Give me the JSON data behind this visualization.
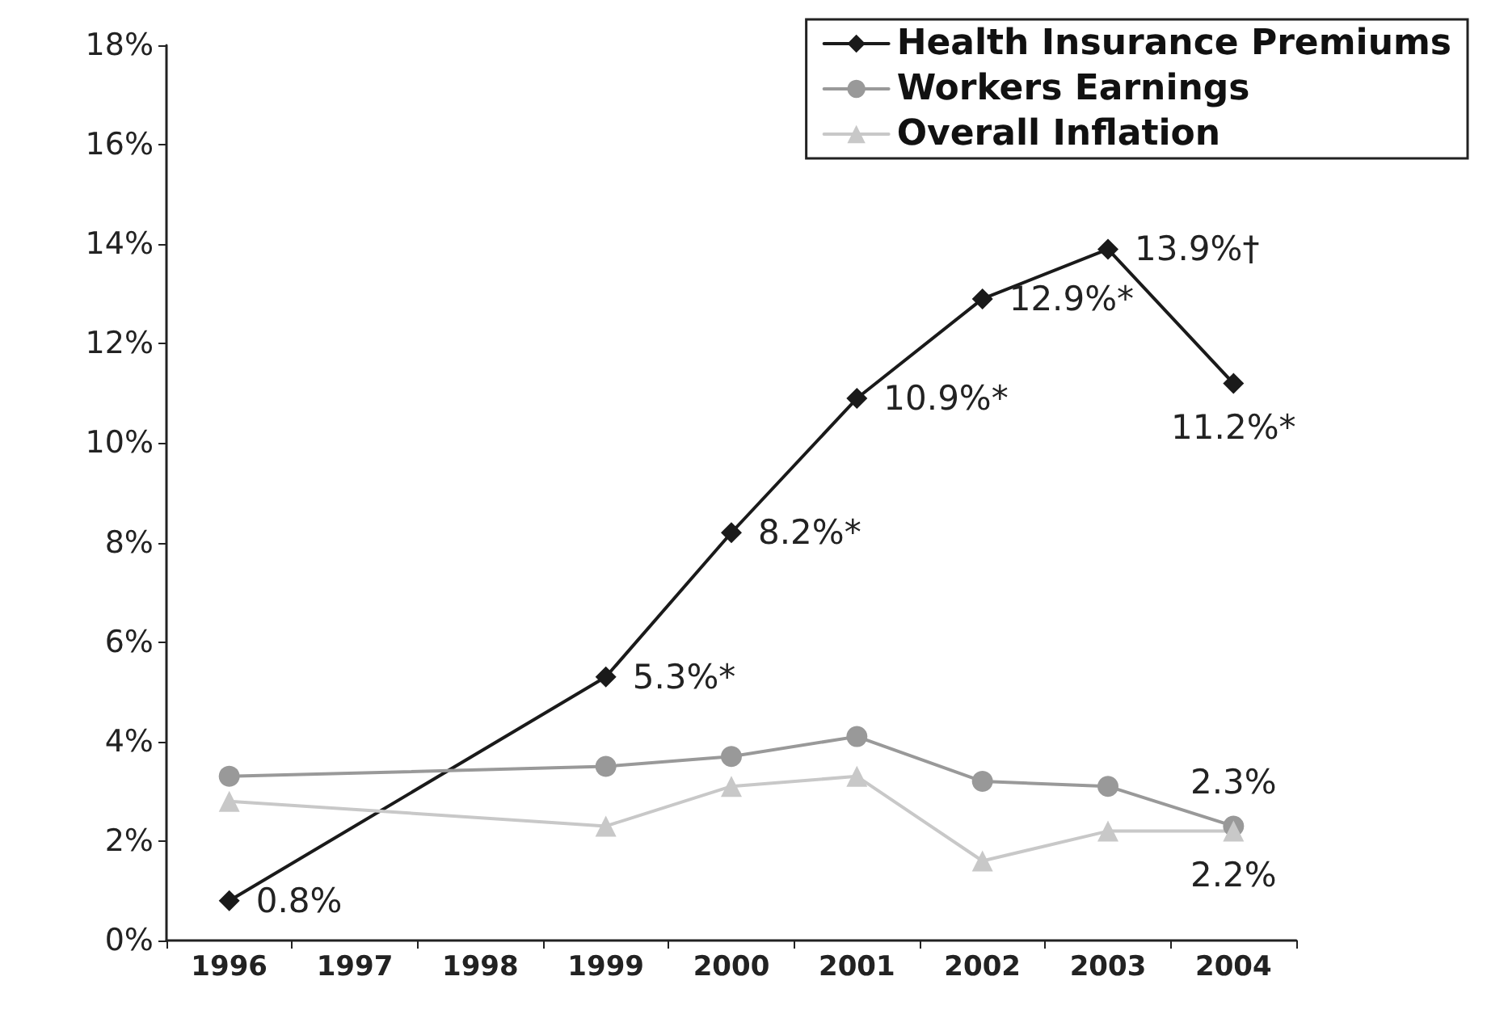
{
  "chart_data": {
    "type": "line",
    "categories": [
      "1996",
      "1997",
      "1998",
      "1999",
      "2000",
      "2001",
      "2002",
      "2003",
      "2004"
    ],
    "series": [
      {
        "name": "Health Insurance Premiums",
        "color": "#1a1a1a",
        "marker": "diamond",
        "values": [
          0.8,
          null,
          null,
          5.3,
          8.2,
          10.9,
          12.9,
          13.9,
          11.2
        ],
        "value_labels": [
          "0.8%",
          null,
          null,
          "5.3%*",
          "8.2%*",
          "10.9%*",
          "12.9%*",
          "13.9%†",
          "11.2%*"
        ]
      },
      {
        "name": "Workers Earnings",
        "color": "#999999",
        "marker": "circle",
        "values": [
          3.3,
          null,
          null,
          3.5,
          3.7,
          4.1,
          3.2,
          3.1,
          2.3
        ],
        "value_labels": [
          null,
          null,
          null,
          null,
          null,
          null,
          null,
          null,
          "2.3%"
        ]
      },
      {
        "name": "Overall Inflation",
        "color": "#c8c8c8",
        "marker": "triangle",
        "values": [
          2.8,
          null,
          null,
          2.3,
          3.1,
          3.3,
          1.6,
          2.2,
          2.2
        ],
        "value_labels": [
          null,
          null,
          null,
          null,
          null,
          null,
          null,
          null,
          "2.2%"
        ]
      }
    ],
    "ylim": [
      0,
      18
    ],
    "yticks": [
      {
        "value": 0,
        "label": "0%"
      },
      {
        "value": 2,
        "label": "2%"
      },
      {
        "value": 4,
        "label": "4%"
      },
      {
        "value": 6,
        "label": "6%"
      },
      {
        "value": 8,
        "label": "8%"
      },
      {
        "value": 10,
        "label": "10%"
      },
      {
        "value": 12,
        "label": "12%"
      },
      {
        "value": 14,
        "label": "14%"
      },
      {
        "value": 16,
        "label": "16%"
      },
      {
        "value": 18,
        "label": "18%"
      }
    ],
    "grid": false,
    "legend": "top right",
    "line_style": "solid"
  }
}
